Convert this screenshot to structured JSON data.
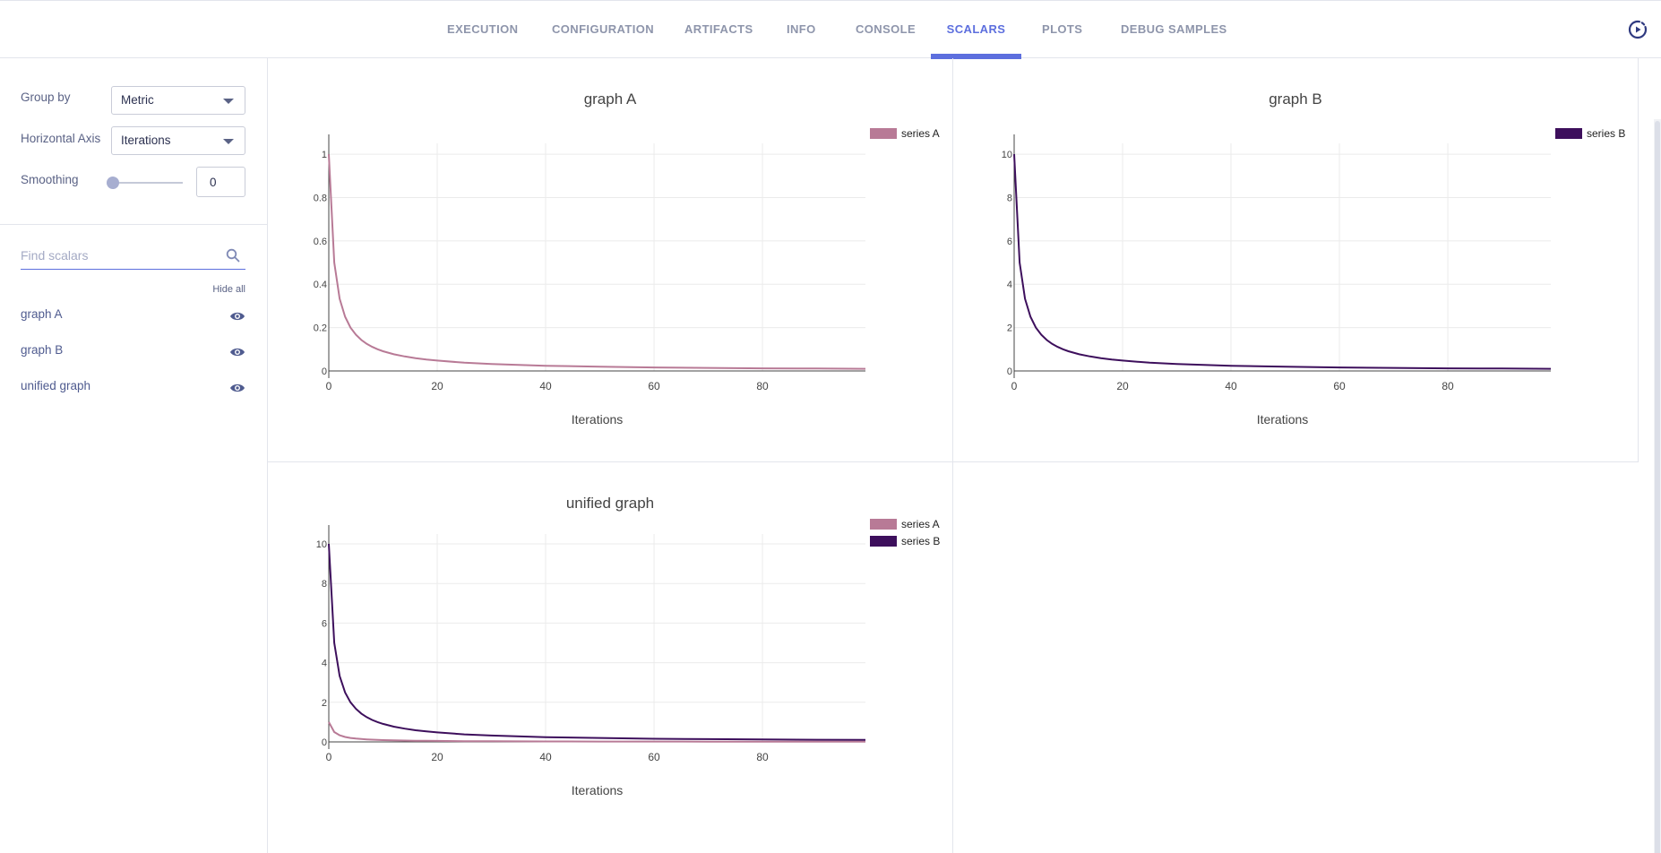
{
  "tabs": [
    {
      "label": "EXECUTION",
      "active": false
    },
    {
      "label": "CONFIGURATION",
      "active": false
    },
    {
      "label": "ARTIFACTS",
      "active": false
    },
    {
      "label": "INFO",
      "active": false
    },
    {
      "label": "CONSOLE",
      "active": false
    },
    {
      "label": "SCALARS",
      "active": true
    },
    {
      "label": "PLOTS",
      "active": false
    },
    {
      "label": "DEBUG SAMPLES",
      "active": false
    }
  ],
  "toolbar": {
    "refresh_icon": "refresh-icon"
  },
  "sidebar": {
    "group_by_label": "Group by",
    "group_by_value": "Metric",
    "horizontal_axis_label": "Horizontal Axis",
    "horizontal_axis_value": "Iterations",
    "smoothing_label": "Smoothing",
    "smoothing_value": "0",
    "smoothing_level": 0,
    "search_placeholder": "Find scalars",
    "hide_all": "Hide all",
    "metrics": [
      {
        "label": "graph A",
        "visible": true
      },
      {
        "label": "graph B",
        "visible": true
      },
      {
        "label": "unified graph",
        "visible": true
      }
    ]
  },
  "colors": {
    "accent": "#5d6fde",
    "series_a": "#b87a96",
    "series_b": "#3d0f5c"
  },
  "chart_data": [
    {
      "type": "line",
      "title": "graph A",
      "xlabel": "Iterations",
      "ylabel": "",
      "xlim": [
        0,
        99
      ],
      "ylim": [
        0,
        1.05
      ],
      "xticks": [
        0,
        20,
        40,
        60,
        80
      ],
      "yticks": [
        0,
        0.2,
        0.4,
        0.6,
        0.8,
        1
      ],
      "legend_position": "top-right",
      "grid": true,
      "series": [
        {
          "name": "series A",
          "color": "#b87a96",
          "x": [
            0,
            1,
            2,
            3,
            4,
            5,
            6,
            7,
            8,
            9,
            10,
            12,
            14,
            16,
            18,
            20,
            25,
            30,
            40,
            50,
            60,
            70,
            80,
            90,
            99
          ],
          "y": [
            1,
            0.5,
            0.333,
            0.25,
            0.2,
            0.167,
            0.143,
            0.125,
            0.111,
            0.1,
            0.091,
            0.077,
            0.067,
            0.059,
            0.053,
            0.048,
            0.038,
            0.032,
            0.024,
            0.02,
            0.016,
            0.014,
            0.012,
            0.011,
            0.01
          ]
        }
      ]
    },
    {
      "type": "line",
      "title": "graph B",
      "xlabel": "Iterations",
      "ylabel": "",
      "xlim": [
        0,
        99
      ],
      "ylim": [
        0,
        10.5
      ],
      "xticks": [
        0,
        20,
        40,
        60,
        80
      ],
      "yticks": [
        0,
        2,
        4,
        6,
        8,
        10
      ],
      "legend_position": "top-right",
      "grid": true,
      "series": [
        {
          "name": "series B",
          "color": "#3d0f5c",
          "x": [
            0,
            1,
            2,
            3,
            4,
            5,
            6,
            7,
            8,
            9,
            10,
            12,
            14,
            16,
            18,
            20,
            25,
            30,
            40,
            50,
            60,
            70,
            80,
            90,
            99
          ],
          "y": [
            10,
            5,
            3.33,
            2.5,
            2,
            1.67,
            1.43,
            1.25,
            1.11,
            1,
            0.91,
            0.77,
            0.67,
            0.59,
            0.53,
            0.48,
            0.38,
            0.32,
            0.24,
            0.2,
            0.16,
            0.14,
            0.12,
            0.11,
            0.1
          ]
        }
      ]
    },
    {
      "type": "line",
      "title": "unified graph",
      "xlabel": "Iterations",
      "ylabel": "",
      "xlim": [
        0,
        99
      ],
      "ylim": [
        0,
        10.5
      ],
      "xticks": [
        0,
        20,
        40,
        60,
        80
      ],
      "yticks": [
        0,
        2,
        4,
        6,
        8,
        10
      ],
      "legend_position": "top-right",
      "grid": true,
      "series": [
        {
          "name": "series A",
          "color": "#b87a96",
          "x": [
            0,
            1,
            2,
            3,
            4,
            5,
            6,
            7,
            8,
            9,
            10,
            12,
            14,
            16,
            18,
            20,
            25,
            30,
            40,
            50,
            60,
            70,
            80,
            90,
            99
          ],
          "y": [
            1,
            0.5,
            0.333,
            0.25,
            0.2,
            0.167,
            0.143,
            0.125,
            0.111,
            0.1,
            0.091,
            0.077,
            0.067,
            0.059,
            0.053,
            0.048,
            0.038,
            0.032,
            0.024,
            0.02,
            0.016,
            0.014,
            0.012,
            0.011,
            0.01
          ]
        },
        {
          "name": "series B",
          "color": "#3d0f5c",
          "x": [
            0,
            1,
            2,
            3,
            4,
            5,
            6,
            7,
            8,
            9,
            10,
            12,
            14,
            16,
            18,
            20,
            25,
            30,
            40,
            50,
            60,
            70,
            80,
            90,
            99
          ],
          "y": [
            10,
            5,
            3.33,
            2.5,
            2,
            1.67,
            1.43,
            1.25,
            1.11,
            1,
            0.91,
            0.77,
            0.67,
            0.59,
            0.53,
            0.48,
            0.38,
            0.32,
            0.24,
            0.2,
            0.16,
            0.14,
            0.12,
            0.11,
            0.1
          ]
        }
      ]
    }
  ]
}
